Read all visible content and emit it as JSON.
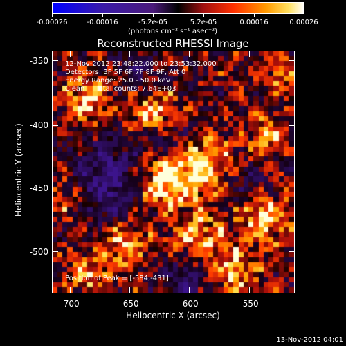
{
  "colorbar": {
    "tick_labels": [
      "-0.00026",
      "-0.00016",
      "-5.2e-05",
      "5.2e-05",
      "0.00016",
      "0.00026"
    ],
    "units": "(photons cm⁻² s⁻¹ asec⁻²)",
    "range": [
      -0.00026,
      0.00026
    ]
  },
  "plot": {
    "title": "Reconstructed RHESSI Image",
    "xlabel": "Heliocentric X (arcsec)",
    "ylabel": "Heliocentric Y (arcsec)",
    "xticks": [
      "-700",
      "-650",
      "-600",
      "-550"
    ],
    "yticks": [
      "-350",
      "-400",
      "-450",
      "-500"
    ],
    "xrange": [
      -715,
      -508
    ],
    "yrange": [
      -333,
      -536
    ]
  },
  "annotations": {
    "time_range": "12-Nov-2012 23:48:22.000 to 23:53:32.000",
    "detectors": "Detectors: 3F 5F 6F 7F 8F 9F, Att 0",
    "energy": "Energy Range: 25.0 - 50.0 keV",
    "method": "Clean     Total counts: 7.64E+03",
    "peak": "Position of Peak = [-584,-431]"
  },
  "timestamp": "13-Nov-2012 04:01",
  "colors": {
    "background": "#000000",
    "foreground": "#ffffff"
  }
}
